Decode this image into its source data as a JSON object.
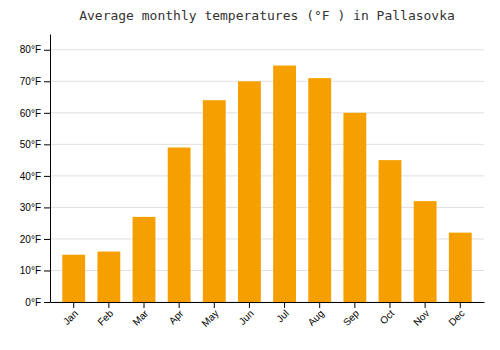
{
  "chart_data": {
    "type": "bar",
    "title": "Average monthly temperatures (°F ) in Pallasovka",
    "categories": [
      "Jan",
      "Feb",
      "Mar",
      "Apr",
      "May",
      "Jun",
      "Jul",
      "Aug",
      "Sep",
      "Oct",
      "Nov",
      "Dec"
    ],
    "values": [
      15,
      16,
      27,
      49,
      64,
      70,
      75,
      71,
      60,
      45,
      32,
      22
    ],
    "color": "#F5A000",
    "ylim": [
      0,
      85
    ],
    "yticks": [
      {
        "value": 0,
        "label": "0°F"
      },
      {
        "value": 10,
        "label": "10°F"
      },
      {
        "value": 20,
        "label": "20°F"
      },
      {
        "value": 30,
        "label": "30°F"
      },
      {
        "value": 40,
        "label": "40°F"
      },
      {
        "value": 50,
        "label": "50°F"
      },
      {
        "value": 60,
        "label": "60°F"
      },
      {
        "value": 70,
        "label": "70°F"
      },
      {
        "value": 80,
        "label": "80°F"
      }
    ],
    "grid": true
  }
}
